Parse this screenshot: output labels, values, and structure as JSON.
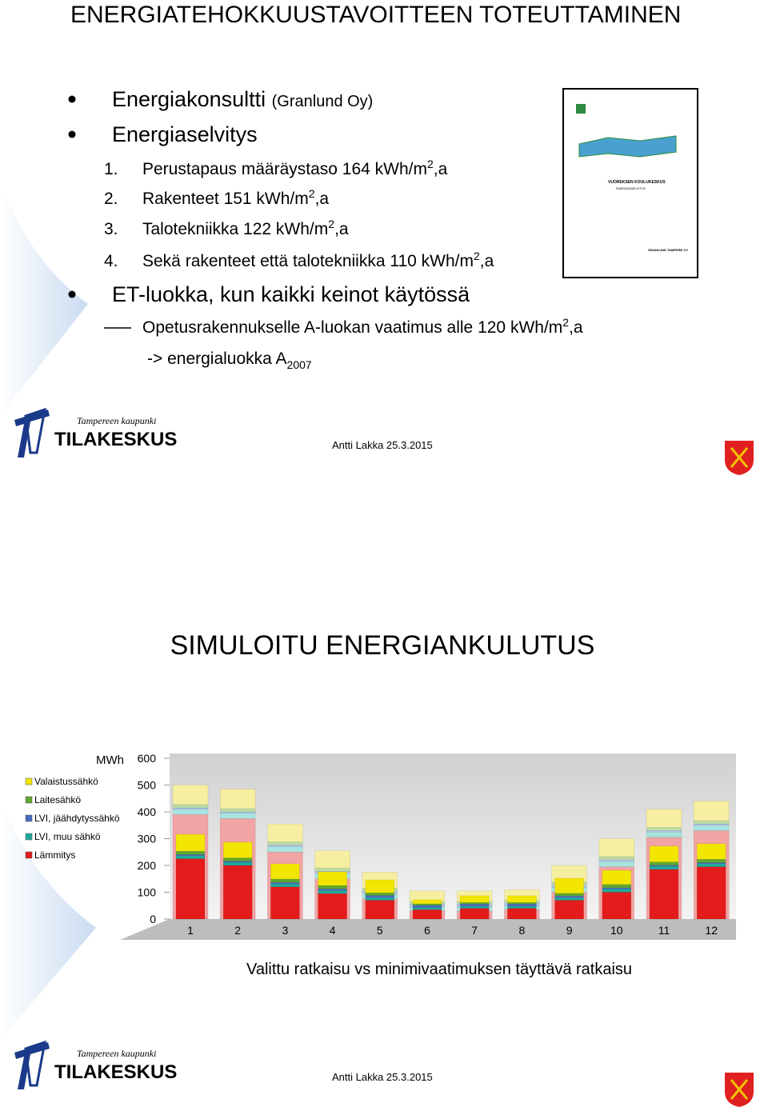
{
  "slides": [
    {
      "title": "ENERGIATEHOKKUUSTAVOITTEEN TOTEUTTAMINEN",
      "items": [
        {
          "text": "Energiakonsultti ",
          "note": "(Granlund Oy)"
        },
        {
          "text": "Energiaselvitys"
        },
        {
          "marker": "1.",
          "text": "Perustapaus määräystaso 164 kWh/m",
          "sup": "2",
          "tail": ",a"
        },
        {
          "marker": "2.",
          "text": "Rakenteet 151 kWh/m",
          "sup": "2",
          "tail": ",a"
        },
        {
          "marker": "3.",
          "text": "Talotekniikka 122 kWh/m",
          "sup": "2",
          "tail": ",a"
        },
        {
          "marker": "4.",
          "text": "Sekä rakenteet että talotekniikka 110 kWh/m",
          "sup": "2",
          "tail": ",a"
        },
        {
          "text": "ET-luokka, kun kaikki keinot käytössä"
        },
        {
          "text": "Opetusrakennukselle A-luokan vaatimus alle 120 kWh/m",
          "sup": "2",
          "tail": ",a"
        },
        {
          "text": "-> energialuokka A",
          "sub": "2007"
        }
      ],
      "report": {
        "title": "VUOREKSEN KOULUKESKUS",
        "subtitle": "ENERGIASELVITYS",
        "company": "GRANLUND TAMPERE OY"
      },
      "logo": {
        "city": "Tampereen kaupunki",
        "name": "TILAKESKUS"
      },
      "footer": "Antti Lakka 25.3.2015"
    },
    {
      "title": "SIMULOITU ENERGIANKULUTUS",
      "caption": "Valittu ratkaisu vs minimivaatimuksen täyttävä ratkaisu",
      "logo": {
        "city": "Tampereen kaupunki",
        "name": "TILAKESKUS"
      },
      "footer": "Antti Lakka 25.3.2015"
    }
  ],
  "chart_data": {
    "type": "bar",
    "stacked": true,
    "y_label": "MWh",
    "categories": [
      "1",
      "2",
      "3",
      "4",
      "5",
      "6",
      "7",
      "8",
      "9",
      "10",
      "11",
      "12"
    ],
    "ylim": [
      0,
      600
    ],
    "yticks": [
      0,
      100,
      200,
      300,
      400,
      500,
      600
    ],
    "series": [
      {
        "name": "Lämmitys",
        "color": "#e31b1b",
        "minimum_color": "#f2a3a3",
        "values": [
          225,
          200,
          120,
          95,
          70,
          35,
          40,
          40,
          70,
          100,
          185,
          195
        ],
        "minimum_values": [
          390,
          375,
          250,
          150,
          75,
          30,
          30,
          35,
          100,
          195,
          305,
          330
        ]
      },
      {
        "name": "LVI, muu sähkö",
        "color": "#1fa99a",
        "minimum_color": "#a8e4e0",
        "values": [
          12,
          12,
          12,
          12,
          10,
          8,
          8,
          8,
          10,
          12,
          12,
          12
        ],
        "minimum_values": [
          20,
          20,
          20,
          20,
          18,
          15,
          15,
          15,
          18,
          20,
          20,
          20
        ]
      },
      {
        "name": "LVI, jäähdytyssähkö",
        "color": "#4a6cc4",
        "minimum_color": "#b5c6ee",
        "values": [
          4,
          4,
          5,
          6,
          8,
          8,
          8,
          8,
          6,
          5,
          4,
          4
        ],
        "minimum_values": [
          5,
          5,
          6,
          8,
          10,
          10,
          10,
          10,
          8,
          6,
          5,
          5
        ]
      },
      {
        "name": "Laitesähkö",
        "color": "#5ea82e",
        "minimum_color": "#bcdca4",
        "values": [
          12,
          12,
          12,
          12,
          10,
          6,
          6,
          6,
          10,
          12,
          12,
          12
        ],
        "minimum_values": [
          12,
          12,
          12,
          12,
          12,
          10,
          10,
          10,
          12,
          12,
          12,
          12
        ]
      },
      {
        "name": "Valaistussähkö",
        "color": "#f2e600",
        "minimum_color": "#f6eea0",
        "values": [
          63,
          59,
          57,
          51,
          48,
          15,
          25,
          25,
          56,
          53,
          59,
          58
        ],
        "minimum_values": [
          73,
          73,
          67,
          65,
          60,
          40,
          40,
          40,
          62,
          67,
          68,
          73
        ]
      }
    ]
  }
}
